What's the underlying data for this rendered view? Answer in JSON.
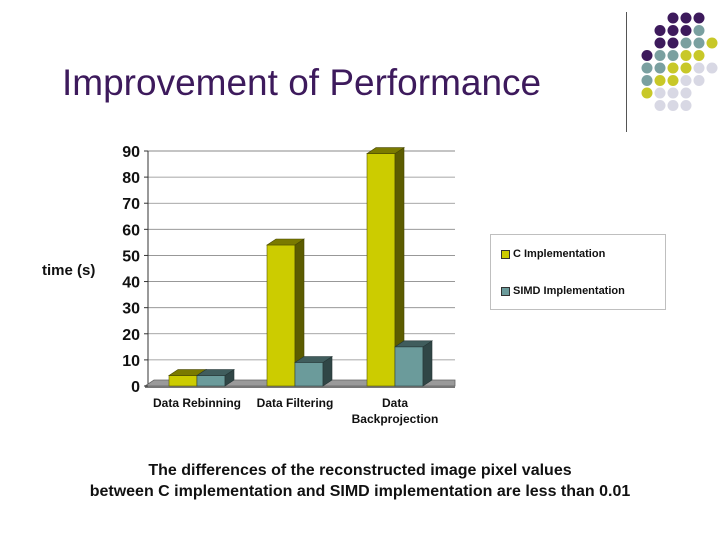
{
  "slide": {
    "title": "Improvement of Performance",
    "caption_line1": "The differences of the reconstructed image pixel values",
    "caption_line2": "between C implementation and SIMD implementation are less than 0.01"
  },
  "colors": {
    "title": "#3d1a5c",
    "c_impl": "#cccc00",
    "simd_impl": "#6b9b9b",
    "dot_purple": "#3d1a5c",
    "dot_teal": "#7aa0a0",
    "dot_yellow": "#c8c828",
    "dot_lavender": "#d8d8e4"
  },
  "chart_data": {
    "type": "bar",
    "title": "",
    "xlabel": "",
    "ylabel": "time (s)",
    "ylim": [
      0,
      90
    ],
    "yticks": [
      "0",
      "10",
      "20",
      "30",
      "40",
      "50",
      "60",
      "70",
      "80",
      "90"
    ],
    "categories": [
      [
        "Data Rebinning"
      ],
      [
        "Data Filtering"
      ],
      [
        "Data",
        "Backprojection"
      ]
    ],
    "series": [
      {
        "name": "C Implementation",
        "values": [
          4,
          54,
          89
        ]
      },
      {
        "name": "SIMD Implementation",
        "values": [
          4,
          9,
          15
        ]
      }
    ],
    "legend_position": "right"
  }
}
